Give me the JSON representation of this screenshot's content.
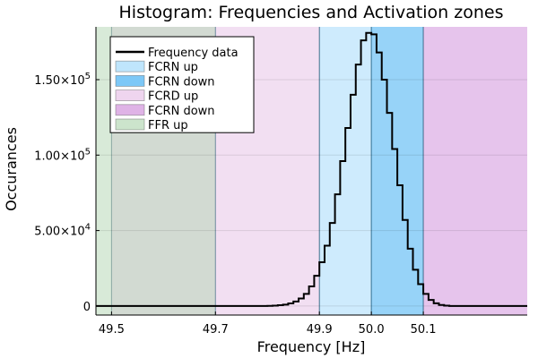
{
  "chart_data": {
    "type": "histogram",
    "title": "Histogram: Frequencies and Activation zones",
    "xlabel": "Frequency [Hz]",
    "ylabel": "Occurances",
    "xlim": [
      49.47,
      50.3
    ],
    "ylim": [
      -6000,
      185000
    ],
    "x_ticks": [
      {
        "value": 49.5,
        "label": "49.5"
      },
      {
        "value": 49.7,
        "label": "49.7"
      },
      {
        "value": 49.9,
        "label": "49.9"
      },
      {
        "value": 50.0,
        "label": "50.0"
      },
      {
        "value": 50.1,
        "label": "50.1"
      }
    ],
    "y_ticks": [
      {
        "value": 0,
        "label": "0",
        "exp": ""
      },
      {
        "value": 50000,
        "label": "5.00×10",
        "exp": "4"
      },
      {
        "value": 100000,
        "label": "1.00×10",
        "exp": "5"
      },
      {
        "value": 150000,
        "label": "1.50×10",
        "exp": "5"
      }
    ],
    "grid": true,
    "legend_position": "top-left",
    "zones": [
      {
        "name": "FCRN up",
        "x0": 49.9,
        "x1": 50.0,
        "color": "#9dd7fb",
        "opacity": 0.5
      },
      {
        "name": "FCRN down",
        "x0": 50.0,
        "x1": 50.1,
        "color": "#52b6f4",
        "opacity": 0.6
      },
      {
        "name": "FCRD up",
        "x0": 49.5,
        "x1": 49.9,
        "color": "#e6bfe6",
        "opacity": 0.5
      },
      {
        "name": "FCRN down",
        "x0": 50.1,
        "x1": 50.35,
        "color": "#d293dc",
        "opacity": 0.55
      },
      {
        "name": "FFR up",
        "x0": 49.4,
        "x1": 49.7,
        "color": "#b1d6b1",
        "opacity": 0.5
      }
    ],
    "series": [
      {
        "name": "Frequency data",
        "color": "#000000",
        "bin_width": 0.01,
        "bin_start": [
          49.8,
          49.81,
          49.82,
          49.83,
          49.84,
          49.85,
          49.86,
          49.87,
          49.88,
          49.89,
          49.9,
          49.91,
          49.92,
          49.93,
          49.94,
          49.95,
          49.96,
          49.97,
          49.98,
          49.99,
          50.0,
          50.01,
          50.02,
          50.03,
          50.04,
          50.05,
          50.06,
          50.07,
          50.08,
          50.09,
          50.1,
          50.11,
          50.12,
          50.13,
          50.14
        ],
        "counts": [
          100,
          250,
          500,
          900,
          1700,
          3000,
          5000,
          8000,
          13000,
          20000,
          29000,
          40000,
          55000,
          74000,
          96000,
          118000,
          140000,
          160000,
          176000,
          181000,
          180000,
          168000,
          150000,
          128000,
          104000,
          80000,
          57000,
          38000,
          24000,
          14500,
          8000,
          4000,
          1800,
          700,
          200
        ]
      }
    ]
  }
}
